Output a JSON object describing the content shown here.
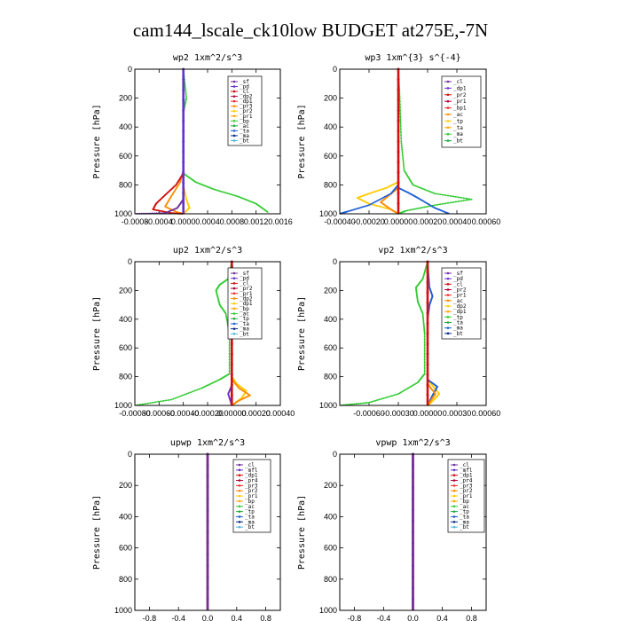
{
  "title": "cam144_lscale_ck10low  BUDGET at275E,-7N",
  "chart_data": [
    {
      "type": "line",
      "title": "wp2   1xm^2/s^3",
      "ylabel": "Pressure [hPa]",
      "xlim": [
        -0.0008,
        0.0016
      ],
      "ylim": [
        1000,
        0
      ],
      "yticks": [
        0,
        200,
        400,
        600,
        800,
        1000
      ],
      "xticks": [
        -0.0008,
        -0.0004,
        0.0,
        0.0004,
        0.0008,
        0.0012,
        0.0016
      ],
      "xticklabels": [
        "-0.0008",
        "-0.0004",
        "0.0000",
        "0.0004",
        "0.0008",
        "0.0012",
        "0.0016"
      ],
      "legend": [
        "_sf",
        "_pd",
        "_cl",
        "_dp2",
        "_dp1",
        "_pr3",
        "_pr2",
        "_pr1",
        "_bp",
        "_ac",
        "_ta",
        "_ma",
        "_bt"
      ],
      "series": [
        {
          "color": "#ff8c00",
          "points": [
            [
              0,
              0
            ],
            [
              0,
              700
            ],
            [
              -5e-05,
              780
            ],
            [
              -0.0002,
              880
            ],
            [
              -0.0003,
              950
            ],
            [
              -0.0001,
              990
            ],
            [
              0,
              1000
            ]
          ]
        },
        {
          "color": "#d01010",
          "points": [
            [
              0,
              0
            ],
            [
              0,
              720
            ],
            [
              -0.00012,
              800
            ],
            [
              -0.0003,
              870
            ],
            [
              -0.00045,
              930
            ],
            [
              -0.0005,
              970
            ],
            [
              -0.0002,
              995
            ],
            [
              0,
              1000
            ]
          ]
        },
        {
          "color": "#7030a0",
          "points": [
            [
              0,
              0
            ],
            [
              0,
              900
            ],
            [
              -0.0001,
              960
            ],
            [
              -0.0003,
              995
            ],
            [
              -0.0008,
              1000
            ]
          ]
        },
        {
          "color": "#33cc33",
          "points": [
            [
              0,
              0
            ],
            [
              5e-05,
              200
            ],
            [
              0,
              300
            ],
            [
              0,
              720
            ],
            [
              0.0002,
              780
            ],
            [
              0.0005,
              830
            ],
            [
              0.0009,
              880
            ],
            [
              0.0012,
              930
            ],
            [
              0.0014,
              990
            ]
          ]
        },
        {
          "color": "#ffcc00",
          "points": [
            [
              0,
              0
            ],
            [
              0,
              800
            ],
            [
              5e-05,
              900
            ],
            [
              0.0001,
              960
            ],
            [
              0,
              1000
            ]
          ]
        },
        {
          "color": "#6633cc",
          "points": [
            [
              0,
              0
            ],
            [
              0,
              1000
            ]
          ]
        }
      ]
    },
    {
      "type": "line",
      "title": "wp3   1xm^{3} s^{-4}",
      "ylabel": "Pressure [hPa]",
      "xlim": [
        -0.0004,
        0.0006
      ],
      "ylim": [
        1000,
        0
      ],
      "yticks": [
        0,
        200,
        400,
        600,
        800,
        1000
      ],
      "xticks": [
        -0.0004,
        -0.0002,
        0.0,
        0.0002,
        0.0004,
        0.0006
      ],
      "xticklabels": [
        "-0.00040",
        "-0.00020",
        "0.00000",
        "0.00020",
        "0.00040",
        "0.00060"
      ],
      "legend": [
        "_cl",
        "_dp1",
        "_pr2",
        "_pr1",
        "_bp1",
        "_ac",
        "_tp",
        "_ta",
        "_ma",
        "_bt"
      ],
      "series": [
        {
          "color": "#ffcc00",
          "points": [
            [
              0,
              0
            ],
            [
              0,
              780
            ],
            [
              -8e-05,
              820
            ],
            [
              -0.0002,
              860
            ],
            [
              -0.00028,
              890
            ],
            [
              -0.0002,
              930
            ],
            [
              -5e-05,
              970
            ],
            [
              0,
              1000
            ]
          ]
        },
        {
          "color": "#ff8c00",
          "points": [
            [
              0,
              0
            ],
            [
              0,
              820
            ],
            [
              -6e-05,
              870
            ],
            [
              -0.00012,
              920
            ],
            [
              -5e-05,
              970
            ],
            [
              0,
              1000
            ]
          ]
        },
        {
          "color": "#33cc33",
          "points": [
            [
              0,
              0
            ],
            [
              1e-05,
              200
            ],
            [
              2e-05,
              500
            ],
            [
              4e-05,
              700
            ],
            [
              0.0001,
              800
            ],
            [
              0.00025,
              860
            ],
            [
              0.0005,
              900
            ],
            [
              0.00025,
              940
            ],
            [
              5e-05,
              980
            ],
            [
              0,
              1000
            ]
          ]
        },
        {
          "color": "#1f5fd6",
          "points": [
            [
              0,
              0
            ],
            [
              0,
              800
            ],
            [
              -5e-05,
              860
            ],
            [
              -0.0002,
              940
            ],
            [
              -0.00035,
              985
            ],
            [
              -0.0004,
              1000
            ]
          ]
        },
        {
          "color": "#1f5fd6",
          "points": [
            [
              0,
              0
            ],
            [
              0,
              820
            ],
            [
              8e-05,
              860
            ],
            [
              0.00015,
              900
            ],
            [
              0.00025,
              960
            ],
            [
              0.00035,
              1000
            ]
          ]
        },
        {
          "color": "#d01010",
          "points": [
            [
              0,
              0
            ],
            [
              0,
              1000
            ]
          ]
        }
      ]
    },
    {
      "type": "line",
      "title": "up2   1xm^2/s^3",
      "ylabel": "Pressure [hPa]",
      "xlim": [
        -0.0008,
        0.0004
      ],
      "ylim": [
        1000,
        0
      ],
      "yticks": [
        0,
        200,
        400,
        600,
        800,
        1000
      ],
      "xticks": [
        -0.0008,
        -0.0006,
        -0.0004,
        -0.0002,
        0.0,
        0.0002,
        0.0004
      ],
      "xticklabels": [
        "-0.00080",
        "-0.00060",
        "-0.00040",
        "-0.00020",
        "0.00000",
        "0.00020",
        "0.00040"
      ],
      "legend": [
        "_sf",
        "_pd",
        "_cl",
        "_pr2",
        "_pr1",
        "_dp2",
        "_dp1",
        "_bp",
        "_ac",
        "_tp",
        "_ta",
        "_ma",
        "_bt"
      ],
      "series": [
        {
          "color": "#33cc33",
          "points": [
            [
              0,
              0
            ],
            [
              -3e-05,
              120
            ],
            [
              -0.0001,
              160
            ],
            [
              -0.00013,
              200
            ],
            [
              -0.0001,
              300
            ],
            [
              -5e-05,
              360
            ],
            [
              -2e-05,
              500
            ],
            [
              -2e-05,
              780
            ],
            [
              -0.0001,
              820
            ],
            [
              -0.00025,
              880
            ],
            [
              -0.0005,
              960
            ],
            [
              -0.0008,
              1000
            ]
          ]
        },
        {
          "color": "#ffcc00",
          "points": [
            [
              0,
              0
            ],
            [
              0,
              800
            ],
            [
              4e-05,
              850
            ],
            [
              0.00012,
              900
            ],
            [
              8e-05,
              950
            ],
            [
              0,
              1000
            ]
          ]
        },
        {
          "color": "#ff8c00",
          "points": [
            [
              0,
              0
            ],
            [
              0,
              820
            ],
            [
              6e-05,
              880
            ],
            [
              0.00015,
              930
            ],
            [
              5e-05,
              970
            ],
            [
              0,
              1000
            ]
          ]
        },
        {
          "color": "#1f5fd6",
          "points": [
            [
              0,
              0
            ],
            [
              2e-05,
              150
            ],
            [
              6e-05,
              220
            ],
            [
              3e-05,
              300
            ],
            [
              0,
              400
            ],
            [
              0,
              1000
            ]
          ]
        },
        {
          "color": "#6633cc",
          "points": [
            [
              0,
              0
            ],
            [
              0,
              860
            ],
            [
              -3e-05,
              920
            ],
            [
              0,
              1000
            ]
          ]
        },
        {
          "color": "#d01010",
          "points": [
            [
              0,
              0
            ],
            [
              0,
              1000
            ]
          ]
        }
      ]
    },
    {
      "type": "line",
      "title": "vp2   1xm^2/s^3",
      "ylabel": "Pressure [hPa]",
      "xlim": [
        -0.0009,
        0.0006
      ],
      "ylim": [
        1000,
        0
      ],
      "yticks": [
        0,
        200,
        400,
        600,
        800,
        1000
      ],
      "xticks": [
        -0.0006,
        -0.0003,
        0.0,
        0.0003,
        0.0006
      ],
      "xticklabels": [
        "-0.00060",
        "-0.00030",
        "0.00000",
        "0.00030",
        "0.00060"
      ],
      "legend": [
        "_sf",
        "_pd",
        "_cl",
        "_pr2",
        "_pr1",
        "_ac",
        "_dp2",
        "_dp1",
        "_tp",
        "_ta",
        "_ma",
        "_bt"
      ],
      "series": [
        {
          "color": "#33cc33",
          "points": [
            [
              0,
              0
            ],
            [
              -5e-05,
              120
            ],
            [
              -0.00012,
              180
            ],
            [
              -0.0001,
              280
            ],
            [
              -5e-05,
              360
            ],
            [
              -3e-05,
              500
            ],
            [
              -3e-05,
              780
            ],
            [
              -0.0001,
              840
            ],
            [
              -0.0003,
              920
            ],
            [
              -0.0006,
              980
            ],
            [
              -0.0009,
              1000
            ]
          ]
        },
        {
          "color": "#ffcc00",
          "points": [
            [
              0,
              0
            ],
            [
              0,
              820
            ],
            [
              6e-05,
              870
            ],
            [
              0.00012,
              920
            ],
            [
              5e-05,
              970
            ],
            [
              0,
              1000
            ]
          ]
        },
        {
          "color": "#1f5fd6",
          "points": [
            [
              0,
              0
            ],
            [
              2e-05,
              180
            ],
            [
              5e-05,
              240
            ],
            [
              2e-05,
              300
            ],
            [
              0,
              400
            ],
            [
              0,
              820
            ],
            [
              0.0001,
              870
            ],
            [
              5e-05,
              930
            ],
            [
              0,
              1000
            ]
          ]
        },
        {
          "color": "#ff8c00",
          "points": [
            [
              0,
              0
            ],
            [
              0,
              850
            ],
            [
              8e-05,
              920
            ],
            [
              2e-05,
              980
            ],
            [
              0,
              1000
            ]
          ]
        },
        {
          "color": "#d01010",
          "points": [
            [
              0,
              0
            ],
            [
              0,
              1000
            ]
          ]
        }
      ]
    },
    {
      "type": "line",
      "title": "upwp   1xm^2/s^3",
      "ylabel": "Pressure [hPa]",
      "xlim": [
        -1.0,
        1.0
      ],
      "ylim": [
        1000,
        0
      ],
      "yticks": [
        0,
        200,
        400,
        600,
        800,
        1000
      ],
      "xticks": [
        -0.8,
        -0.4,
        0.0,
        0.4,
        0.8
      ],
      "xticklabels": [
        "-0.8",
        "-0.4",
        "0.0",
        "0.4",
        "0.8"
      ],
      "legend": [
        "_cl",
        "_mfl",
        "_dp1",
        "_pr4",
        "_pr3",
        "_pr2",
        "_pr1",
        "_bp",
        "_ac",
        "_tp",
        "_ta",
        "_ma",
        "_bt"
      ],
      "series": [
        {
          "color": "#d01010",
          "points": [
            [
              0,
              0
            ],
            [
              0,
              1000
            ]
          ]
        },
        {
          "color": "#7030a0",
          "points": [
            [
              0,
              0
            ],
            [
              0,
              1000
            ]
          ]
        }
      ]
    },
    {
      "type": "line",
      "title": "vpwp   1xm^2/s^3",
      "ylabel": "Pressure [hPa]",
      "xlim": [
        -1.0,
        1.0
      ],
      "ylim": [
        1000,
        0
      ],
      "yticks": [
        0,
        200,
        400,
        600,
        800,
        1000
      ],
      "xticks": [
        -0.8,
        -0.4,
        0.0,
        0.4,
        0.8
      ],
      "xticklabels": [
        "-0.8",
        "-0.4",
        "0.0",
        "0.4",
        "0.8"
      ],
      "legend": [
        "_cl",
        "_mfl",
        "_dp1",
        "_pr4",
        "_pr3",
        "_pr2",
        "_pr1",
        "_bp",
        "_ac",
        "_tp",
        "_ta",
        "_ma",
        "_bt"
      ],
      "series": [
        {
          "color": "#d01010",
          "points": [
            [
              0,
              0
            ],
            [
              0,
              1000
            ]
          ]
        },
        {
          "color": "#7030a0",
          "points": [
            [
              0,
              0
            ],
            [
              0,
              1000
            ]
          ]
        }
      ]
    }
  ],
  "legend_colors": [
    "#7030a0",
    "#6633cc",
    "#d01010",
    "#b0003a",
    "#ff2a2a",
    "#ff8c00",
    "#ffcc00",
    "#ffa500",
    "#33cc33",
    "#22aa44",
    "#1f5fd6",
    "#0a2a8a",
    "#4fb8e0",
    "#00d0ff"
  ]
}
